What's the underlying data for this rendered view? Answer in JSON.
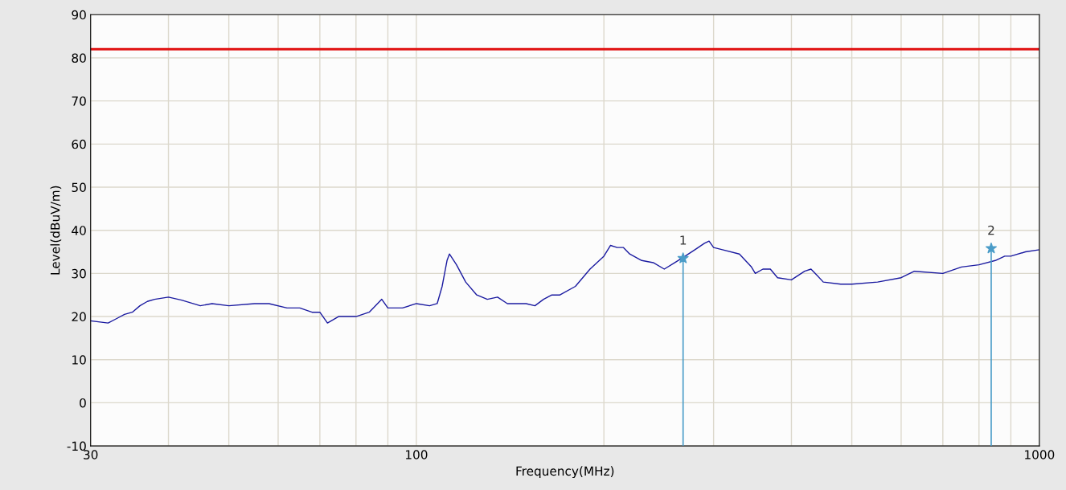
{
  "chart_data": {
    "type": "line",
    "xlabel": "Frequency(MHz)",
    "ylabel": "Level(dBuV/m)",
    "log": "x",
    "xlim": [
      30,
      1000
    ],
    "ylim": [
      -10,
      90
    ],
    "xticks": [
      30,
      {
        "value": 40,
        "label": null
      },
      {
        "value": 50,
        "label": null
      },
      {
        "value": 60,
        "label": null
      },
      {
        "value": 70,
        "label": null
      },
      {
        "value": 80,
        "label": null
      },
      {
        "value": 90,
        "label": null
      },
      100,
      {
        "value": 200,
        "label": null
      },
      {
        "value": 300,
        "label": null
      },
      {
        "value": 400,
        "label": null
      },
      {
        "value": 500,
        "label": null
      },
      {
        "value": 600,
        "label": null
      },
      {
        "value": 700,
        "label": null
      },
      {
        "value": 800,
        "label": null
      },
      {
        "value": 900,
        "label": null
      },
      1000
    ],
    "yticks": [
      -10,
      0,
      10,
      20,
      30,
      40,
      50,
      60,
      70,
      80,
      90
    ],
    "grid": true,
    "series": [
      {
        "color": "#1a1aa0",
        "x": [
          30,
          32,
          33,
          34,
          35,
          36,
          37,
          38,
          40,
          42,
          45,
          47,
          50,
          55,
          58,
          62,
          65,
          68,
          70,
          72,
          75,
          80,
          84,
          88,
          90,
          95,
          100,
          105,
          108,
          110,
          112,
          113,
          116,
          120,
          125,
          130,
          135,
          140,
          150,
          155,
          160,
          165,
          170,
          180,
          190,
          200,
          205,
          210,
          215,
          220,
          230,
          240,
          250,
          260,
          270,
          280,
          290,
          295,
          300,
          310,
          330,
          345,
          350,
          360,
          370,
          380,
          400,
          420,
          430,
          440,
          450,
          480,
          500,
          550,
          600,
          630,
          700,
          750,
          800,
          850,
          880,
          900,
          950,
          1000
        ],
        "values": [
          19,
          18.5,
          19.5,
          20.5,
          21,
          22.5,
          23.5,
          24,
          24.5,
          23.8,
          22.5,
          23,
          22.5,
          23,
          23,
          22,
          22,
          21,
          21,
          18.5,
          20,
          20,
          21,
          24,
          22,
          22,
          23,
          22.5,
          23,
          27,
          33,
          34.5,
          32,
          28,
          25,
          24,
          24.5,
          23,
          23,
          22.5,
          24,
          25,
          25,
          27,
          31,
          34,
          36.5,
          36,
          36,
          34.5,
          33,
          32.5,
          31,
          32.5,
          34,
          35.5,
          37,
          37.5,
          36,
          35.5,
          34.5,
          31.5,
          30,
          31,
          31,
          29,
          28.5,
          30.5,
          31,
          29.5,
          28,
          27.5,
          27.5,
          28,
          29,
          30.5,
          30,
          31.5,
          32,
          33,
          34,
          34,
          35,
          35.5
        ]
      },
      {
        "type": "scatter",
        "color": "#4a9cc8",
        "marker": "star",
        "x": [
          268,
          837
        ],
        "values": [
          33.5,
          35.8
        ],
        "errors": [
          [
            -10,
            33.5
          ],
          [
            -10,
            35.8
          ]
        ]
      }
    ],
    "ref_lines": [
      {
        "axis": "y",
        "value": 82,
        "color": "#e01010"
      }
    ],
    "annotations": [
      "1",
      "2"
    ]
  }
}
